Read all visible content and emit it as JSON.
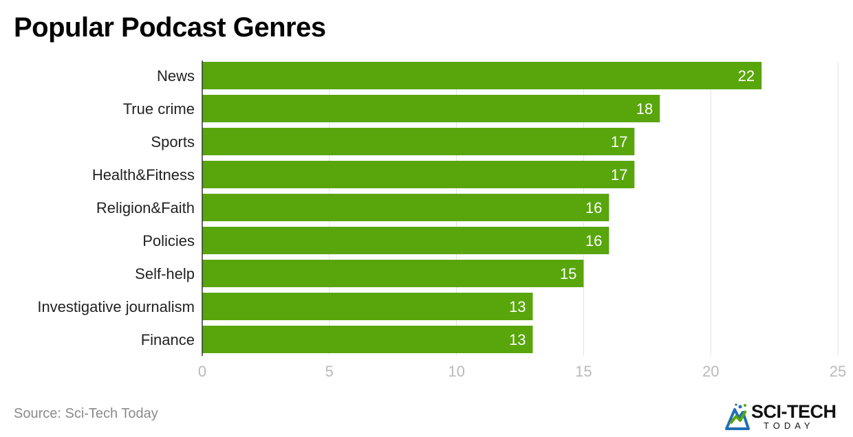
{
  "title": "Popular Podcast Genres",
  "source": "Source: Sci-Tech Today",
  "logo": {
    "name": "SCI-TECH",
    "tagline": "TODAY"
  },
  "colors": {
    "bar": "#58a60b",
    "grid": "#e2e2e2",
    "axis": "#333333",
    "tick": "#b9b9b9"
  },
  "chart_data": {
    "type": "bar",
    "orientation": "horizontal",
    "title": "Popular Podcast Genres",
    "categories": [
      "News",
      "True crime",
      "Sports",
      "Health&Fitness",
      "Religion&Faith",
      "Policies",
      "Self-help",
      "Investigative journalism",
      "Finance"
    ],
    "values": [
      22,
      18,
      17,
      17,
      16,
      16,
      15,
      13,
      13
    ],
    "xlim": [
      0,
      25
    ],
    "xticks": [
      0,
      5,
      10,
      15,
      20,
      25
    ],
    "xlabel": "",
    "ylabel": "",
    "grid": true,
    "data_labels": true
  }
}
